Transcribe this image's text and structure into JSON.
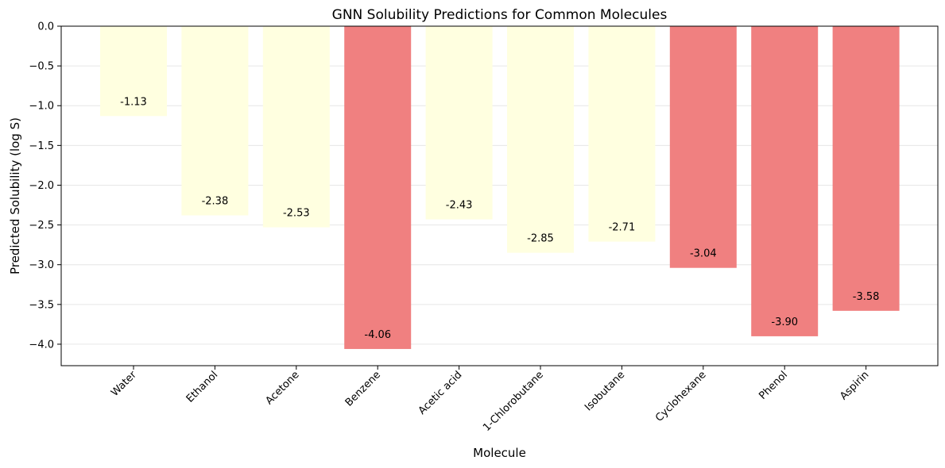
{
  "chart_data": {
    "type": "bar",
    "title": "GNN Solubility Predictions for Common Molecules",
    "xlabel": "Molecule",
    "ylabel": "Predicted Solubility (log S)",
    "categories": [
      "Water",
      "Ethanol",
      "Acetone",
      "Benzene",
      "Acetic acid",
      "1-Chlorobutane",
      "Isobutane",
      "Cyclohexane",
      "Phenol",
      "Aspirin"
    ],
    "values": [
      -1.13,
      -2.38,
      -2.53,
      -4.06,
      -2.43,
      -2.85,
      -2.71,
      -3.04,
      -3.9,
      -3.58
    ],
    "value_labels": [
      "-1.13",
      "-2.38",
      "-2.53",
      "-4.06",
      "-2.43",
      "-2.85",
      "-2.71",
      "-3.04",
      "-3.90",
      "-3.58"
    ],
    "bar_colors": [
      "#ffffe0",
      "#ffffe0",
      "#ffffe0",
      "#f08080",
      "#ffffe0",
      "#ffffe0",
      "#ffffe0",
      "#f08080",
      "#f08080",
      "#f08080"
    ],
    "ylim": [
      -4.27,
      0
    ],
    "yticks": [
      0,
      -0.5,
      -1.0,
      -1.5,
      -2.0,
      -2.5,
      -3.0,
      -3.5,
      -4.0
    ],
    "ytick_labels": [
      "0.0",
      "−0.5",
      "−1.0",
      "−1.5",
      "−2.0",
      "−2.5",
      "−3.0",
      "−3.5",
      "−4.0"
    ],
    "grid": "horizontal",
    "legend": "none"
  }
}
